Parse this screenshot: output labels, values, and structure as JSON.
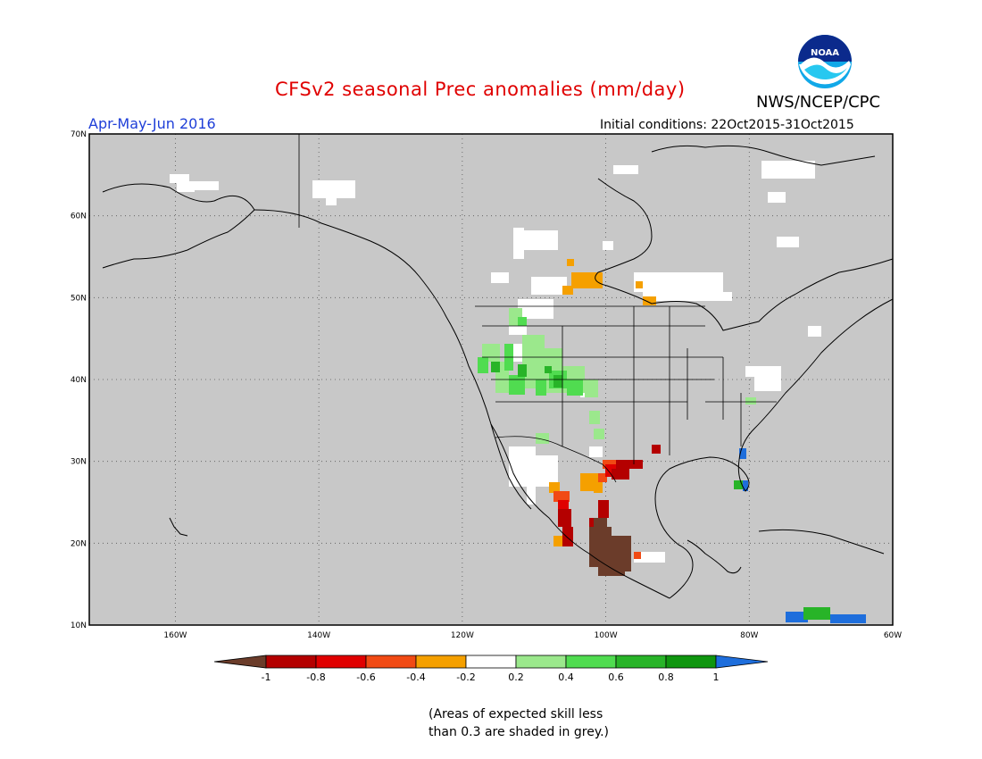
{
  "title": "CFSv2 seasonal Prec anomalies (mm/day)",
  "agency": "NWS/NCEP/CPC",
  "logo_text": "NOAA",
  "season": "Apr-May-Jun 2016",
  "initial_conditions": "Initial conditions: 22Oct2015-31Oct2015",
  "map": {
    "lon_range": [
      -172,
      -60
    ],
    "lat_range": [
      10,
      70
    ],
    "lon_ticks": [
      "160W",
      "140W",
      "120W",
      "100W",
      "80W",
      "60W"
    ],
    "lon_tick_values": [
      -160,
      -140,
      -120,
      -100,
      -80,
      -60
    ],
    "lat_ticks": [
      "70N",
      "60N",
      "50N",
      "40N",
      "30N",
      "20N",
      "10N"
    ],
    "lat_tick_values": [
      70,
      60,
      50,
      40,
      30,
      20,
      10
    ],
    "grid": "dotted",
    "background_color": "#c8c8c8",
    "border_color": "#000000"
  },
  "legend": {
    "labels": [
      "-1",
      "-0.8",
      "-0.6",
      "-0.4",
      "-0.2",
      "0.2",
      "0.4",
      "0.6",
      "0.8",
      "1"
    ],
    "colors": [
      "#6b3c2a",
      "#b40000",
      "#e00000",
      "#f14a14",
      "#f5a000",
      "#ffffff",
      "#9be88c",
      "#50dc50",
      "#28b428",
      "#0f960f",
      "#1e6edc"
    ]
  },
  "note_line1": "(Areas of expected skill less",
  "note_line2": "than 0.3 are shaded in grey.)"
}
